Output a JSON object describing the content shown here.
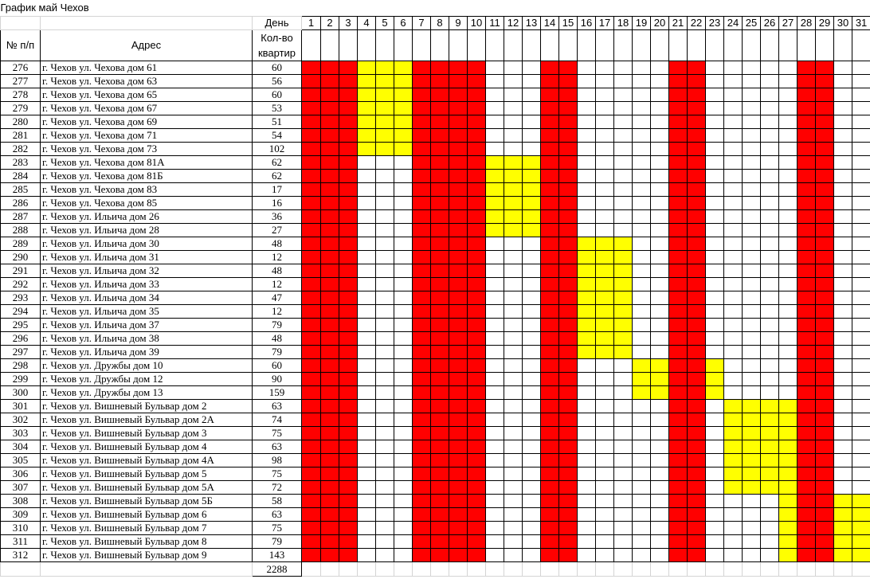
{
  "sheet": {
    "title": "График май Чехов",
    "header": {
      "num": "№ п/п",
      "address": "Адрес",
      "day": "День",
      "flats": "Кол-во квартир"
    },
    "days": [
      "1",
      "2",
      "3",
      "4",
      "5",
      "6",
      "7",
      "8",
      "9",
      "10",
      "11",
      "12",
      "13",
      "14",
      "15",
      "16",
      "17",
      "18",
      "19",
      "20",
      "21",
      "22",
      "23",
      "24",
      "25",
      "26",
      "27",
      "28",
      "29",
      "30",
      "31"
    ],
    "colors": {
      "red": "#ff0000",
      "yellow": "#ffff00",
      "white": "#ffffff"
    },
    "red_days": [
      1,
      2,
      3,
      7,
      8,
      9,
      10,
      14,
      15,
      21,
      22,
      28,
      29
    ],
    "rows": [
      {
        "n": "276",
        "addr": "г. Чехов ул. Чехова дом 61",
        "q": "60",
        "y": [
          4,
          5,
          6
        ]
      },
      {
        "n": "277",
        "addr": "г. Чехов ул. Чехова дом 63",
        "q": "56",
        "y": [
          4,
          5,
          6
        ]
      },
      {
        "n": "278",
        "addr": "г. Чехов ул. Чехова дом 65",
        "q": "60",
        "y": [
          4,
          5,
          6
        ]
      },
      {
        "n": "279",
        "addr": "г. Чехов ул. Чехова дом 67",
        "q": "53",
        "y": [
          4,
          5,
          6
        ]
      },
      {
        "n": "280",
        "addr": "г. Чехов ул. Чехова дом 69",
        "q": "51",
        "y": [
          4,
          5,
          6
        ]
      },
      {
        "n": "281",
        "addr": "г. Чехов ул. Чехова дом 71",
        "q": "54",
        "y": [
          4,
          5,
          6
        ]
      },
      {
        "n": "282",
        "addr": "г. Чехов ул. Чехова дом 73",
        "q": "102",
        "y": [
          4,
          5,
          6
        ]
      },
      {
        "n": "283",
        "addr": "г. Чехов ул. Чехова дом 81А",
        "q": "62",
        "y": [
          11,
          12,
          13
        ]
      },
      {
        "n": "284",
        "addr": "г. Чехов ул. Чехова дом 81Б",
        "q": "62",
        "y": [
          11,
          12,
          13
        ]
      },
      {
        "n": "285",
        "addr": "г. Чехов ул. Чехова дом 83",
        "q": "17",
        "y": [
          11,
          12,
          13
        ]
      },
      {
        "n": "286",
        "addr": "г. Чехов ул. Чехова дом 85",
        "q": "16",
        "y": [
          11,
          12,
          13
        ]
      },
      {
        "n": "287",
        "addr": "г. Чехов ул. Ильича дом 26",
        "q": "36",
        "y": [
          11,
          12,
          13
        ]
      },
      {
        "n": "288",
        "addr": "г. Чехов ул. Ильича дом 28",
        "q": "27",
        "y": [
          11,
          12,
          13
        ]
      },
      {
        "n": "289",
        "addr": "г. Чехов ул. Ильича дом 30",
        "q": "48",
        "y": [
          16,
          17,
          18
        ]
      },
      {
        "n": "290",
        "addr": "г. Чехов ул. Ильича дом 31",
        "q": "12",
        "y": [
          16,
          17,
          18
        ]
      },
      {
        "n": "291",
        "addr": "г. Чехов ул. Ильича дом 32",
        "q": "48",
        "y": [
          16,
          17,
          18
        ]
      },
      {
        "n": "292",
        "addr": "г. Чехов ул. Ильича дом 33",
        "q": "12",
        "y": [
          16,
          17,
          18
        ]
      },
      {
        "n": "293",
        "addr": "г. Чехов ул. Ильича дом 34",
        "q": "47",
        "y": [
          16,
          17,
          18
        ]
      },
      {
        "n": "294",
        "addr": "г. Чехов ул. Ильича дом 35",
        "q": "12",
        "y": [
          16,
          17,
          18
        ]
      },
      {
        "n": "295",
        "addr": "г. Чехов ул. Ильича дом 37",
        "q": "79",
        "y": [
          16,
          17,
          18
        ]
      },
      {
        "n": "296",
        "addr": "г. Чехов ул. Ильича дом 38",
        "q": "48",
        "y": [
          16,
          17,
          18
        ]
      },
      {
        "n": "297",
        "addr": "г. Чехов ул. Ильича дом 39",
        "q": "79",
        "y": [
          16,
          17,
          18
        ]
      },
      {
        "n": "298",
        "addr": "г. Чехов ул. Дружбы дом 10",
        "q": "60",
        "y": [
          19,
          20,
          23
        ]
      },
      {
        "n": "299",
        "addr": "г. Чехов ул. Дружбы дом 12",
        "q": "90",
        "y": [
          19,
          20,
          23
        ]
      },
      {
        "n": "300",
        "addr": "г. Чехов ул. Дружбы дом 13",
        "q": "159",
        "y": [
          19,
          20,
          23
        ]
      },
      {
        "n": "301",
        "addr": "г. Чехов ул. Вишневый Бульвар дом 2",
        "q": "63",
        "y": [
          24,
          25,
          26,
          27
        ]
      },
      {
        "n": "302",
        "addr": "г. Чехов ул. Вишневый Бульвар дом 2А",
        "q": "74",
        "y": [
          24,
          25,
          26,
          27
        ]
      },
      {
        "n": "303",
        "addr": "г. Чехов ул. Вишневый Бульвар дом 3",
        "q": "75",
        "y": [
          24,
          25,
          26,
          27
        ]
      },
      {
        "n": "304",
        "addr": "г. Чехов ул. Вишневый Бульвар дом 4",
        "q": "63",
        "y": [
          24,
          25,
          26,
          27
        ]
      },
      {
        "n": "305",
        "addr": "г. Чехов ул. Вишневый Бульвар дом 4А",
        "q": "98",
        "y": [
          24,
          25,
          26,
          27
        ]
      },
      {
        "n": "306",
        "addr": "г. Чехов ул. Вишневый Бульвар дом 5",
        "q": "75",
        "y": [
          24,
          25,
          26,
          27
        ]
      },
      {
        "n": "307",
        "addr": "г. Чехов ул. Вишневый Бульвар дом 5А",
        "q": "72",
        "y": [
          24,
          25,
          26,
          27
        ]
      },
      {
        "n": "308",
        "addr": "г. Чехов ул. Вишневый Бульвар дом 5Б",
        "q": "58",
        "y": [
          27,
          30,
          31
        ]
      },
      {
        "n": "309",
        "addr": "г. Чехов ул. Вишневый Бульвар дом 6",
        "q": "63",
        "y": [
          27,
          30,
          31
        ]
      },
      {
        "n": "310",
        "addr": "г. Чехов ул. Вишневый Бульвар дом 7",
        "q": "75",
        "y": [
          27,
          30,
          31
        ]
      },
      {
        "n": "311",
        "addr": "г. Чехов ул. Вишневый Бульвар дом 8",
        "q": "79",
        "y": [
          27,
          30,
          31
        ]
      },
      {
        "n": "312",
        "addr": "г. Чехов ул. Вишневый Бульвар дом 9",
        "q": "143",
        "y": [
          27,
          30,
          31
        ]
      }
    ],
    "total": "2288"
  }
}
